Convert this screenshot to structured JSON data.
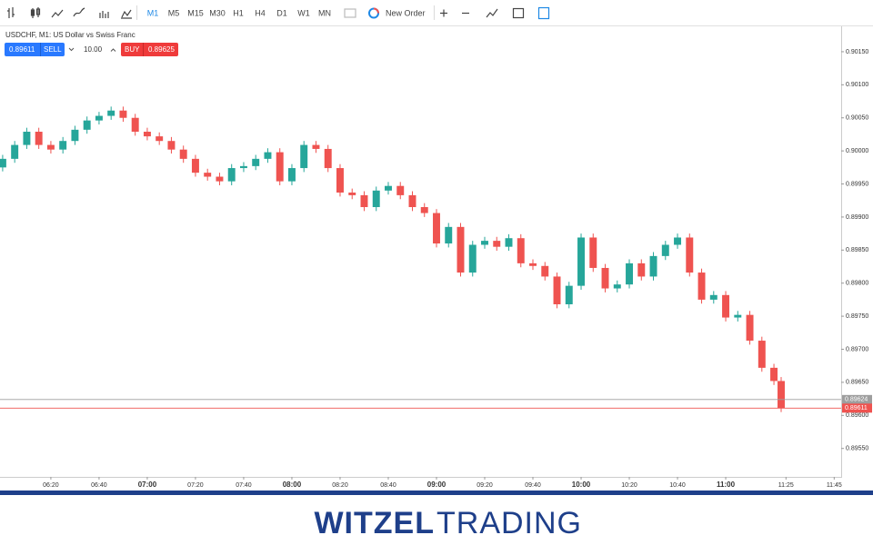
{
  "toolbar": {
    "timeframes": [
      "M1",
      "M5",
      "M15",
      "M30",
      "H1",
      "H4",
      "D1",
      "W1",
      "MN"
    ],
    "new_order": "New Order"
  },
  "trade_panel": {
    "symbol": "USDCHF, M1: US Dollar vs Swiss Franc",
    "sell_price": "0.89611",
    "sell": "SELL",
    "volume": "10.00",
    "buy": "BUY",
    "buy_price": "0.89625"
  },
  "chart_data": {
    "type": "candlestick",
    "x": [
      360,
      365,
      370,
      375,
      380,
      385,
      390,
      395,
      400,
      405,
      410,
      415,
      420,
      425,
      430,
      435,
      440,
      445,
      450,
      455,
      460,
      465,
      470,
      475,
      480,
      485,
      490,
      495,
      500,
      505,
      510,
      515,
      520,
      525,
      530,
      535,
      540,
      545,
      550,
      555,
      560,
      565,
      570,
      575,
      580,
      585,
      590,
      595,
      600,
      605,
      610,
      615,
      620,
      625,
      630,
      635,
      640,
      645,
      650,
      655,
      660,
      665,
      670,
      675,
      680,
      683
    ],
    "open": [
      0.89975,
      0.89988,
      0.90009,
      0.90029,
      0.90009,
      0.90002,
      0.90015,
      0.90032,
      0.90046,
      0.90053,
      0.90061,
      0.9005,
      0.90029,
      0.90022,
      0.90015,
      0.90002,
      0.89988,
      0.89967,
      0.89961,
      0.89954,
      0.89974,
      0.89977,
      0.89988,
      0.89998,
      0.89954,
      0.89974,
      0.90009,
      0.90003,
      0.89974,
      0.89937,
      0.89933,
      0.89915,
      0.8994,
      0.89947,
      0.89933,
      0.89915,
      0.89906,
      0.8986,
      0.89885,
      0.89816,
      0.89858,
      0.89864,
      0.89855,
      0.89868,
      0.8983,
      0.89826,
      0.8981,
      0.89768,
      0.89796,
      0.89869,
      0.89823,
      0.89792,
      0.89798,
      0.8983,
      0.8981,
      0.89841,
      0.89858,
      0.89869,
      0.89816,
      0.89775,
      0.89782,
      0.89748,
      0.89752,
      0.89713,
      0.89672,
      0.89652
    ],
    "high": [
      0.89994,
      0.90015,
      0.90035,
      0.90035,
      0.90015,
      0.90021,
      0.90038,
      0.90052,
      0.90059,
      0.90067,
      0.90067,
      0.90056,
      0.90035,
      0.90028,
      0.90021,
      0.90008,
      0.89994,
      0.89973,
      0.89967,
      0.8998,
      0.89983,
      0.89994,
      0.90004,
      0.90004,
      0.8998,
      0.90015,
      0.90015,
      0.90009,
      0.8998,
      0.89943,
      0.89939,
      0.89946,
      0.89953,
      0.89953,
      0.89939,
      0.89921,
      0.89912,
      0.89891,
      0.89891,
      0.89864,
      0.8987,
      0.8987,
      0.89874,
      0.89874,
      0.89836,
      0.89832,
      0.89816,
      0.89802,
      0.89875,
      0.89875,
      0.89829,
      0.89804,
      0.89836,
      0.89836,
      0.89847,
      0.89864,
      0.89875,
      0.89875,
      0.89822,
      0.89788,
      0.89788,
      0.89758,
      0.89758,
      0.89719,
      0.89678,
      0.89658
    ],
    "low": [
      0.89969,
      0.89982,
      0.90003,
      0.90003,
      0.89996,
      0.89996,
      0.90009,
      0.90026,
      0.9004,
      0.90047,
      0.90044,
      0.90023,
      0.90016,
      0.90009,
      0.89996,
      0.89982,
      0.89961,
      0.89955,
      0.89948,
      0.89948,
      0.89968,
      0.89971,
      0.89982,
      0.89948,
      0.89948,
      0.89968,
      0.89997,
      0.89968,
      0.89931,
      0.89927,
      0.89909,
      0.89909,
      0.89934,
      0.89927,
      0.89909,
      0.899,
      0.89854,
      0.89854,
      0.8981,
      0.8981,
      0.89852,
      0.89849,
      0.89849,
      0.89824,
      0.8982,
      0.89804,
      0.89762,
      0.89762,
      0.8979,
      0.89817,
      0.89786,
      0.89786,
      0.89792,
      0.89804,
      0.89804,
      0.89835,
      0.89852,
      0.8981,
      0.89769,
      0.89769,
      0.89742,
      0.89742,
      0.89707,
      0.89666,
      0.89646,
      0.89605
    ],
    "close": [
      0.89988,
      0.90009,
      0.90029,
      0.90009,
      0.90002,
      0.90015,
      0.90032,
      0.90046,
      0.90053,
      0.90061,
      0.9005,
      0.90029,
      0.90022,
      0.90015,
      0.90002,
      0.89988,
      0.89967,
      0.89961,
      0.89954,
      0.89974,
      0.89977,
      0.89988,
      0.89998,
      0.89954,
      0.89974,
      0.90009,
      0.90003,
      0.89974,
      0.89937,
      0.89933,
      0.89915,
      0.8994,
      0.89947,
      0.89933,
      0.89915,
      0.89906,
      0.8986,
      0.89885,
      0.89816,
      0.89858,
      0.89864,
      0.89855,
      0.89868,
      0.8983,
      0.89826,
      0.8981,
      0.89768,
      0.89796,
      0.89869,
      0.89823,
      0.89792,
      0.89798,
      0.8983,
      0.8981,
      0.89841,
      0.89858,
      0.89869,
      0.89816,
      0.89775,
      0.89782,
      0.89748,
      0.89752,
      0.89713,
      0.89672,
      0.89652,
      0.89611
    ],
    "up_color": "#26a69a",
    "down_color": "#ef5350",
    "xlim": [
      358.9,
      707.9
    ],
    "xticks": [
      {
        "value": 380,
        "label": "06:20"
      },
      {
        "value": 400,
        "label": "06:40"
      },
      {
        "value": 420,
        "label": "07:00"
      },
      {
        "value": 440,
        "label": "07:20"
      },
      {
        "value": 460,
        "label": "07:40"
      },
      {
        "value": 480,
        "label": "08:00"
      },
      {
        "value": 500,
        "label": "08:20"
      },
      {
        "value": 520,
        "label": "08:40"
      },
      {
        "value": 540,
        "label": "09:00"
      },
      {
        "value": 560,
        "label": "09:20"
      },
      {
        "value": 580,
        "label": "09:40"
      },
      {
        "value": 600,
        "label": "10:00"
      },
      {
        "value": 620,
        "label": "10:20"
      },
      {
        "value": 640,
        "label": "10:40"
      },
      {
        "value": 660,
        "label": "11:00"
      },
      {
        "value": 685,
        "label": "11:25"
      },
      {
        "value": 705,
        "label": "11:45"
      }
    ],
    "ylim": [
      0.89507,
      0.90187
    ],
    "yticks": [
      {
        "value": 0.9015,
        "label": "0.90150"
      },
      {
        "value": 0.901,
        "label": "0.90100"
      },
      {
        "value": 0.9005,
        "label": "0.90050"
      },
      {
        "value": 0.9,
        "label": "0.90000"
      },
      {
        "value": 0.8995,
        "label": "0.89950"
      },
      {
        "value": 0.899,
        "label": "0.89900"
      },
      {
        "value": 0.8985,
        "label": "0.89850"
      },
      {
        "value": 0.898,
        "label": "0.89800"
      },
      {
        "value": 0.8975,
        "label": "0.89750"
      },
      {
        "value": 0.897,
        "label": "0.89700"
      },
      {
        "value": 0.8965,
        "label": "0.89650"
      },
      {
        "value": 0.896,
        "label": "0.89600"
      },
      {
        "value": 0.8955,
        "label": "0.89550"
      }
    ],
    "price_lines": [
      {
        "value": 0.89624,
        "label": "0.89624",
        "color": "#9e9e9e"
      },
      {
        "value": 0.89611,
        "label": "0.89611",
        "color": "#ef5350"
      }
    ]
  },
  "footer": {
    "brand_bold": "WITZEL",
    "brand_light": "TRADING"
  }
}
